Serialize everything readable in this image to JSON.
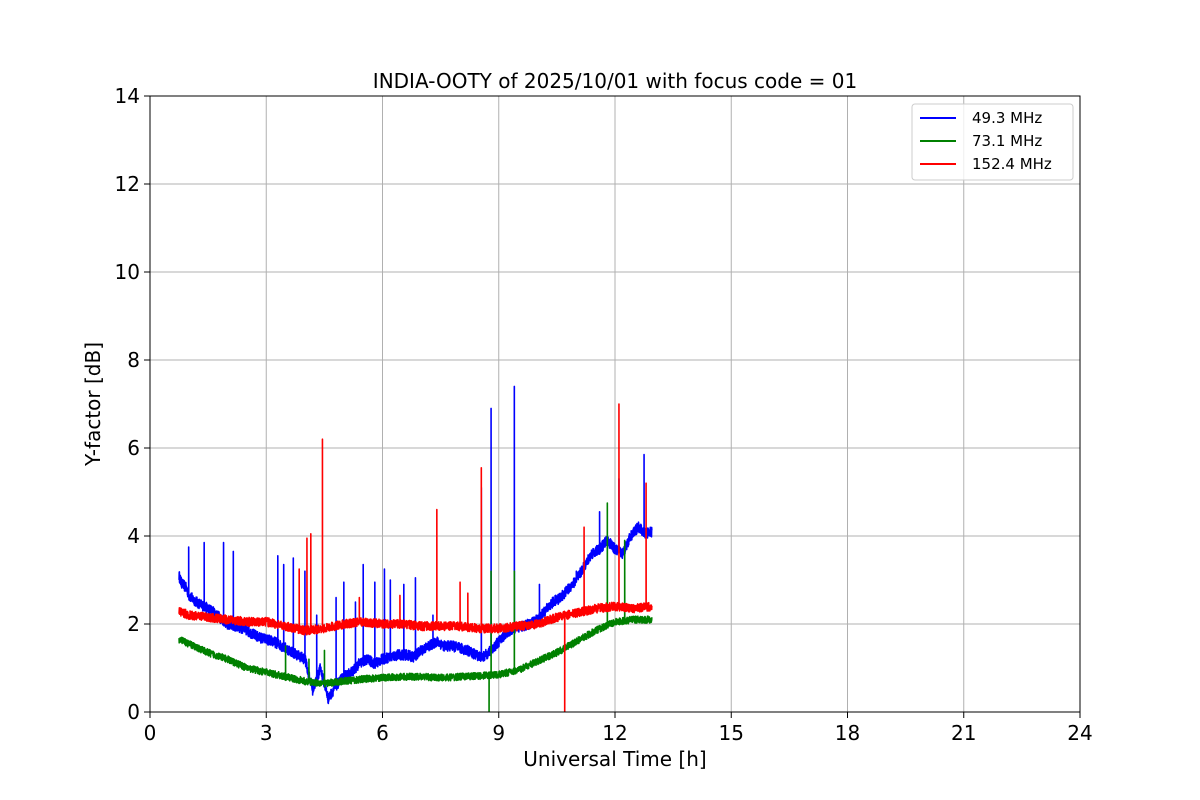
{
  "chart_data": {
    "type": "line",
    "title": "INDIA-OOTY of 2025/10/01 with focus code = 01",
    "xlabel": "Universal Time [h]",
    "ylabel": "Y-factor [dB]",
    "xlim": [
      0,
      24
    ],
    "ylim": [
      0,
      14
    ],
    "xticks": [
      0,
      3,
      6,
      9,
      12,
      15,
      18,
      21,
      24
    ],
    "yticks": [
      0,
      2,
      4,
      6,
      8,
      10,
      12,
      14
    ],
    "grid": true,
    "legend_position": "top-right",
    "series": [
      {
        "name": "49.3 MHz",
        "color": "#0000ff",
        "x": [
          0.75,
          0.8,
          0.9,
          0.95,
          1.0,
          1.2,
          1.4,
          1.6,
          1.8,
          2.0,
          2.2,
          2.4,
          2.6,
          2.8,
          3.0,
          3.2,
          3.4,
          3.6,
          3.8,
          4.0,
          4.2,
          4.4,
          4.6,
          4.8,
          5.0,
          5.2,
          5.4,
          5.6,
          5.8,
          6.0,
          6.2,
          6.4,
          6.6,
          6.8,
          7.0,
          7.2,
          7.4,
          7.6,
          7.8,
          8.0,
          8.2,
          8.4,
          8.6,
          8.8,
          9.0,
          9.2,
          9.4,
          9.6,
          9.8,
          10.0,
          10.2,
          10.4,
          10.6,
          10.8,
          11.0,
          11.2,
          11.4,
          11.6,
          11.8,
          12.0,
          12.2,
          12.4,
          12.6,
          12.8,
          12.95
        ],
        "y": [
          3.1,
          2.95,
          2.85,
          2.8,
          2.65,
          2.5,
          2.4,
          2.3,
          2.15,
          2.0,
          1.95,
          1.9,
          1.8,
          1.7,
          1.65,
          1.6,
          1.5,
          1.4,
          1.3,
          1.2,
          0.5,
          1.0,
          0.3,
          0.6,
          0.8,
          0.9,
          1.1,
          1.2,
          1.1,
          1.2,
          1.25,
          1.3,
          1.3,
          1.25,
          1.4,
          1.5,
          1.6,
          1.5,
          1.5,
          1.45,
          1.4,
          1.3,
          1.25,
          1.4,
          1.6,
          1.8,
          1.9,
          1.95,
          2.0,
          2.1,
          2.3,
          2.5,
          2.6,
          2.8,
          3.0,
          3.3,
          3.6,
          3.7,
          3.9,
          3.7,
          3.6,
          4.0,
          4.2,
          4.05,
          4.1
        ],
        "noise": 0.12,
        "spikes": [
          [
            1.0,
            3.75
          ],
          [
            1.4,
            3.85
          ],
          [
            1.9,
            3.85
          ],
          [
            2.15,
            3.65
          ],
          [
            3.3,
            3.55
          ],
          [
            3.45,
            3.35
          ],
          [
            3.7,
            3.5
          ],
          [
            4.0,
            3.2
          ],
          [
            4.3,
            2.2
          ],
          [
            4.8,
            2.6
          ],
          [
            5.0,
            2.95
          ],
          [
            5.3,
            2.5
          ],
          [
            5.5,
            3.35
          ],
          [
            5.8,
            2.95
          ],
          [
            6.05,
            3.25
          ],
          [
            6.2,
            3.0
          ],
          [
            6.55,
            2.9
          ],
          [
            6.85,
            3.05
          ],
          [
            7.3,
            2.2
          ],
          [
            8.55,
            5.1
          ],
          [
            8.8,
            6.9
          ],
          [
            9.4,
            7.4
          ],
          [
            10.05,
            2.9
          ],
          [
            11.0,
            3.2
          ],
          [
            11.6,
            4.55
          ],
          [
            12.1,
            5.3
          ],
          [
            12.75,
            5.85
          ]
        ]
      },
      {
        "name": "73.1 MHz",
        "color": "#008000",
        "x": [
          0.75,
          1.0,
          1.5,
          2.0,
          2.5,
          3.0,
          3.5,
          4.0,
          4.5,
          5.0,
          5.5,
          6.0,
          6.5,
          7.0,
          7.5,
          8.0,
          8.5,
          9.0,
          9.5,
          10.0,
          10.5,
          11.0,
          11.5,
          12.0,
          12.5,
          12.95
        ],
        "y": [
          1.65,
          1.55,
          1.35,
          1.2,
          1.0,
          0.9,
          0.8,
          0.7,
          0.65,
          0.7,
          0.75,
          0.78,
          0.8,
          0.8,
          0.78,
          0.8,
          0.82,
          0.85,
          0.95,
          1.15,
          1.35,
          1.6,
          1.85,
          2.05,
          2.1,
          2.1
        ],
        "noise": 0.08,
        "spikes": [
          [
            3.5,
            1.5
          ],
          [
            4.1,
            1.2
          ],
          [
            4.5,
            1.4
          ],
          [
            8.8,
            3.2
          ],
          [
            8.75,
            -0.5
          ],
          [
            9.4,
            3.2
          ],
          [
            11.8,
            4.75
          ],
          [
            12.25,
            3.9
          ]
        ]
      },
      {
        "name": "152.4 MHz",
        "color": "#ff0000",
        "x": [
          0.75,
          1.0,
          1.5,
          2.0,
          2.5,
          3.0,
          3.5,
          4.0,
          4.5,
          5.0,
          5.5,
          6.0,
          6.5,
          7.0,
          7.5,
          8.0,
          8.5,
          9.0,
          9.5,
          10.0,
          10.5,
          11.0,
          11.5,
          12.0,
          12.5,
          12.95
        ],
        "y": [
          2.3,
          2.2,
          2.15,
          2.1,
          2.05,
          2.05,
          1.95,
          1.85,
          1.9,
          2.0,
          2.05,
          2.0,
          2.0,
          1.95,
          1.95,
          1.95,
          1.9,
          1.9,
          1.95,
          2.0,
          2.15,
          2.25,
          2.35,
          2.4,
          2.35,
          2.4
        ],
        "noise": 0.1,
        "spikes": [
          [
            3.85,
            3.25
          ],
          [
            4.05,
            3.95
          ],
          [
            4.15,
            4.05
          ],
          [
            4.45,
            6.2
          ],
          [
            5.4,
            2.6
          ],
          [
            6.45,
            2.65
          ],
          [
            7.4,
            4.6
          ],
          [
            8.0,
            2.95
          ],
          [
            8.2,
            2.7
          ],
          [
            8.55,
            5.55
          ],
          [
            10.7,
            -0.5
          ],
          [
            11.2,
            4.2
          ],
          [
            12.1,
            7.0
          ],
          [
            12.8,
            5.2
          ]
        ]
      }
    ]
  }
}
